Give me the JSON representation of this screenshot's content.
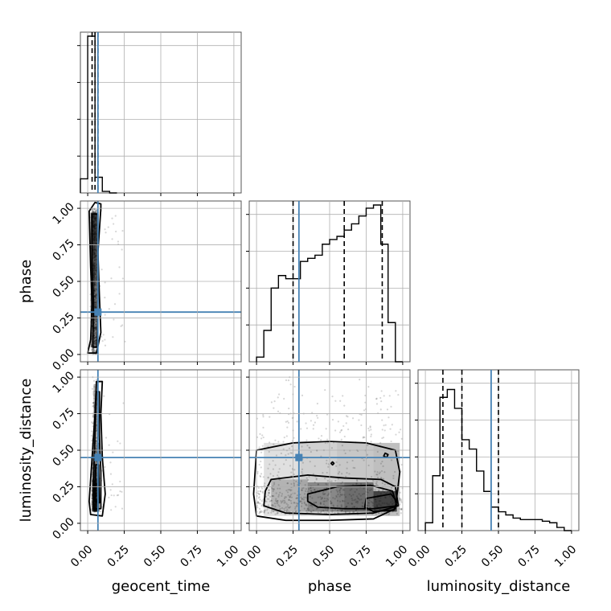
{
  "chart_data": {
    "type": "corner",
    "parameters": [
      "geocent_time",
      "phase",
      "luminosity_distance"
    ],
    "labels": [
      "geocent_time",
      "phase",
      "luminosity_distance"
    ],
    "ticks": [
      "0.00",
      "0.25",
      "0.50",
      "0.75",
      "1.00"
    ],
    "range": [
      [
        -0.05,
        1.05
      ],
      [
        -0.05,
        1.05
      ],
      [
        -0.05,
        1.05
      ]
    ],
    "truths": [
      0.07,
      0.29,
      0.45
    ],
    "quantiles": [
      [
        0.03,
        0.05,
        0.07
      ],
      [
        0.25,
        0.6,
        0.86
      ],
      [
        0.12,
        0.25,
        0.5
      ]
    ],
    "colors": {
      "truth": "#4682b4",
      "hist": "#000000",
      "grid": "#b0b0b0",
      "frame": "#555555"
    },
    "grid": true,
    "histograms": {
      "geocent_time": {
        "bin_edges": [
          -0.05,
          0.0,
          0.05,
          0.1,
          0.15,
          0.2
        ],
        "heights": [
          0.09,
          1.0,
          0.1,
          0.01,
          0.0
        ]
      },
      "phase": {
        "bin_edges": [
          0.0,
          0.05,
          0.1,
          0.15,
          0.2,
          0.25,
          0.3,
          0.35,
          0.4,
          0.45,
          0.5,
          0.55,
          0.6,
          0.65,
          0.7,
          0.75,
          0.8,
          0.85,
          0.9,
          0.95,
          1.0
        ],
        "heights": [
          0.03,
          0.2,
          0.47,
          0.55,
          0.53,
          0.53,
          0.64,
          0.66,
          0.68,
          0.75,
          0.78,
          0.8,
          0.84,
          0.88,
          0.93,
          0.98,
          1.0,
          0.75,
          0.25,
          0.0
        ]
      },
      "luminosity_distance": {
        "bin_edges": [
          0.0,
          0.05,
          0.1,
          0.15,
          0.2,
          0.25,
          0.3,
          0.35,
          0.4,
          0.45,
          0.5,
          0.55,
          0.6,
          0.65,
          0.7,
          0.75,
          0.8,
          0.85,
          0.9,
          0.95,
          1.0
        ],
        "heights": [
          0.05,
          0.35,
          0.85,
          0.9,
          0.78,
          0.58,
          0.52,
          0.38,
          0.25,
          0.15,
          0.12,
          0.1,
          0.08,
          0.07,
          0.07,
          0.07,
          0.06,
          0.05,
          0.02,
          0.0
        ]
      }
    },
    "contours": {
      "phase_vs_geocent_time": [
        [
          [
            0.09,
            1.03
          ],
          [
            0.05,
            1.04
          ],
          [
            0.01,
            0.98
          ],
          [
            0.02,
            0.6
          ],
          [
            0.03,
            0.35
          ],
          [
            0.02,
            0.1
          ],
          [
            0.0,
            0.01
          ],
          [
            0.06,
            0.01
          ],
          [
            0.09,
            0.15
          ],
          [
            0.08,
            0.4
          ],
          [
            0.07,
            0.7
          ],
          [
            0.09,
            1.0
          ]
        ],
        [
          [
            0.07,
            0.96
          ],
          [
            0.03,
            0.96
          ],
          [
            0.03,
            0.6
          ],
          [
            0.04,
            0.35
          ],
          [
            0.035,
            0.05
          ],
          [
            0.065,
            0.05
          ],
          [
            0.07,
            0.35
          ],
          [
            0.07,
            0.96
          ]
        ]
      ],
      "luminosity_distance_vs_geocent_time": [
        [
          [
            0.1,
            0.97
          ],
          [
            0.06,
            0.97
          ],
          [
            0.05,
            0.75
          ],
          [
            0.03,
            0.45
          ],
          [
            0.01,
            0.15
          ],
          [
            0.02,
            0.06
          ],
          [
            0.1,
            0.05
          ],
          [
            0.12,
            0.2
          ],
          [
            0.1,
            0.45
          ],
          [
            0.09,
            0.75
          ],
          [
            0.1,
            0.97
          ]
        ],
        [
          [
            0.08,
            0.9
          ],
          [
            0.06,
            0.9
          ],
          [
            0.05,
            0.6
          ],
          [
            0.04,
            0.3
          ],
          [
            0.04,
            0.1
          ],
          [
            0.09,
            0.1
          ],
          [
            0.09,
            0.35
          ],
          [
            0.08,
            0.6
          ],
          [
            0.08,
            0.9
          ]
        ],
        [
          [
            0.075,
            0.4
          ],
          [
            0.055,
            0.4
          ],
          [
            0.05,
            0.15
          ],
          [
            0.08,
            0.14
          ],
          [
            0.075,
            0.4
          ]
        ]
      ],
      "luminosity_distance_vs_phase": [
        [
          [
            0.0,
            0.5
          ],
          [
            0.25,
            0.55
          ],
          [
            0.5,
            0.56
          ],
          [
            0.75,
            0.55
          ],
          [
            0.95,
            0.5
          ],
          [
            0.98,
            0.35
          ],
          [
            0.95,
            0.1
          ],
          [
            0.8,
            0.03
          ],
          [
            0.5,
            0.02
          ],
          [
            0.2,
            0.02
          ],
          [
            0.0,
            0.05
          ],
          [
            -0.02,
            0.2
          ],
          [
            0.0,
            0.5
          ]
        ],
        [
          [
            0.1,
            0.3
          ],
          [
            0.35,
            0.33
          ],
          [
            0.6,
            0.31
          ],
          [
            0.85,
            0.3
          ],
          [
            0.95,
            0.25
          ],
          [
            0.97,
            0.12
          ],
          [
            0.8,
            0.07
          ],
          [
            0.5,
            0.06
          ],
          [
            0.2,
            0.07
          ],
          [
            0.05,
            0.12
          ],
          [
            0.06,
            0.22
          ],
          [
            0.1,
            0.3
          ]
        ],
        [
          [
            0.35,
            0.2
          ],
          [
            0.55,
            0.25
          ],
          [
            0.78,
            0.26
          ],
          [
            0.93,
            0.22
          ],
          [
            0.96,
            0.12
          ],
          [
            0.8,
            0.1
          ],
          [
            0.6,
            0.1
          ],
          [
            0.42,
            0.11
          ],
          [
            0.35,
            0.15
          ],
          [
            0.35,
            0.2
          ]
        ],
        [
          [
            0.75,
            0.17
          ],
          [
            0.92,
            0.2
          ],
          [
            0.96,
            0.15
          ],
          [
            0.94,
            0.09
          ],
          [
            0.8,
            0.08
          ],
          [
            0.74,
            0.11
          ],
          [
            0.75,
            0.17
          ]
        ],
        [
          [
            0.88,
            0.48
          ],
          [
            0.9,
            0.47
          ],
          [
            0.89,
            0.45
          ],
          [
            0.87,
            0.46
          ],
          [
            0.88,
            0.48
          ]
        ],
        [
          [
            0.52,
            0.42
          ],
          [
            0.53,
            0.41
          ],
          [
            0.52,
            0.4
          ],
          [
            0.51,
            0.41
          ],
          [
            0.52,
            0.42
          ]
        ]
      ]
    }
  }
}
